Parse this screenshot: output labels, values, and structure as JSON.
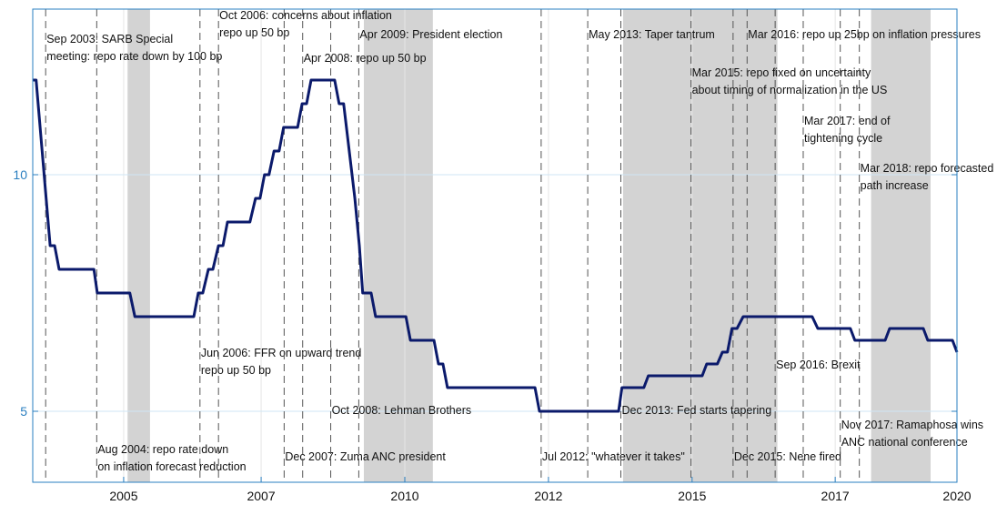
{
  "chart_data": {
    "type": "line",
    "xlim": [
      2003.44,
      2019.91
    ],
    "ylim": [
      3.5,
      13.5
    ],
    "xticks": [
      {
        "value": 2005.06,
        "label": "2005"
      },
      {
        "value": 2007.51,
        "label": "2007"
      },
      {
        "value": 2010.07,
        "label": "2010"
      },
      {
        "value": 2012.63,
        "label": "2012"
      },
      {
        "value": 2015.19,
        "label": "2015"
      },
      {
        "value": 2017.74,
        "label": "2017"
      },
      {
        "value": 2019.91,
        "label": "2020"
      }
    ],
    "yticks": [
      5,
      10
    ],
    "grid": true,
    "axis_color": "#2a7fc0",
    "band_color": "#d3d3d3",
    "bands": [
      [
        2005.13,
        2005.53
      ],
      [
        2009.34,
        2010.57
      ],
      [
        2013.96,
        2016.71
      ],
      [
        2018.38,
        2019.44
      ]
    ],
    "series": [
      {
        "color": "#0b1a6b",
        "x": [
          2003.44,
          2003.5,
          2003.75,
          2003.83,
          2003.91,
          2004.53,
          2004.59,
          2005.17,
          2005.26,
          2006.31,
          2006.39,
          2006.47,
          2006.57,
          2006.65,
          2006.75,
          2006.83,
          2006.91,
          2007.31,
          2007.41,
          2007.49,
          2007.57,
          2007.65,
          2007.74,
          2007.83,
          2007.91,
          2008.16,
          2008.24,
          2008.32,
          2008.4,
          2008.82,
          2008.9,
          2008.98,
          2009.18,
          2009.26,
          2009.32,
          2009.47,
          2009.55,
          2010.09,
          2010.17,
          2010.59,
          2010.67,
          2010.75,
          2010.83,
          2012.39,
          2012.47,
          2013.88,
          2013.94,
          2014.33,
          2014.41,
          2015.37,
          2015.45,
          2015.64,
          2015.73,
          2015.82,
          2015.9,
          2015.99,
          2016.1,
          2017.33,
          2017.43,
          2018.01,
          2018.09,
          2018.63,
          2018.71,
          2019.31,
          2019.39,
          2019.83,
          2019.91
        ],
        "values": [
          12,
          12,
          8.5,
          8.5,
          8,
          8,
          7.5,
          7.5,
          7,
          7,
          7.5,
          7.5,
          8,
          8,
          8.5,
          8.5,
          9,
          9,
          9.5,
          9.5,
          10,
          10,
          10.5,
          10.5,
          11,
          11,
          11.5,
          11.5,
          12,
          12,
          11.5,
          11.5,
          9.5,
          8.5,
          7.5,
          7.5,
          7,
          7,
          6.5,
          6.5,
          6,
          6,
          5.5,
          5.5,
          5,
          5,
          5.5,
          5.5,
          5.75,
          5.75,
          6,
          6,
          6.25,
          6.25,
          6.75,
          6.75,
          7,
          7,
          6.75,
          6.75,
          6.5,
          6.5,
          6.75,
          6.75,
          6.5,
          6.5,
          6.25
        ]
      }
    ],
    "annotations": [
      {
        "x": 2003.67,
        "lines": [
          "Sep 2003: SARB Special",
          "meeting: repo rate down by 100 bp"
        ]
      },
      {
        "x": 2004.58,
        "lines": [
          "Aug 2004: repo rate down",
          "on inflation forecast reduction"
        ]
      },
      {
        "x": 2006.42,
        "lines": [
          "Jun 2006: FFR on upward trend",
          "repo up 50 bp"
        ]
      },
      {
        "x": 2006.75,
        "lines": [
          "Oct 2006: concerns about inflation",
          "repo up 50 bp"
        ]
      },
      {
        "x": 2007.92,
        "lines": [
          "Dec 2007: Zuma ANC president"
        ]
      },
      {
        "x": 2008.25,
        "lines": [
          "Apr 2008: repo up 50 bp"
        ]
      },
      {
        "x": 2008.75,
        "lines": [
          "Oct 2008: Lehman Brothers"
        ]
      },
      {
        "x": 2009.25,
        "lines": [
          "Apr 2009: President election"
        ]
      },
      {
        "x": 2012.5,
        "lines": [
          "Jul 2012: \"whatever it takes\""
        ]
      },
      {
        "x": 2013.33,
        "lines": [
          "May 2013: Taper tantrum"
        ]
      },
      {
        "x": 2013.92,
        "lines": [
          "Dec 2013: Fed starts tapering"
        ]
      },
      {
        "x": 2015.17,
        "lines": [
          "Mar 2015: repo fixed on uncertainty",
          "about timing of normalization in the US"
        ]
      },
      {
        "x": 2015.92,
        "lines": [
          "Dec 2015: Nene fired"
        ]
      },
      {
        "x": 2016.17,
        "lines": [
          "Mar 2016: repo up 25bp on inflation pressures"
        ]
      },
      {
        "x": 2016.67,
        "lines": [
          "Sep 2016: Brexit"
        ]
      },
      {
        "x": 2017.17,
        "lines": [
          "Mar 2017: end of",
          "tightening cycle"
        ]
      },
      {
        "x": 2017.83,
        "lines": [
          "Nov 2017: Ramaphosa wins",
          "ANC national conference"
        ]
      },
      {
        "x": 2018.17,
        "lines": [
          "Mar 2018: repo forecasted",
          "path increase"
        ]
      }
    ]
  }
}
